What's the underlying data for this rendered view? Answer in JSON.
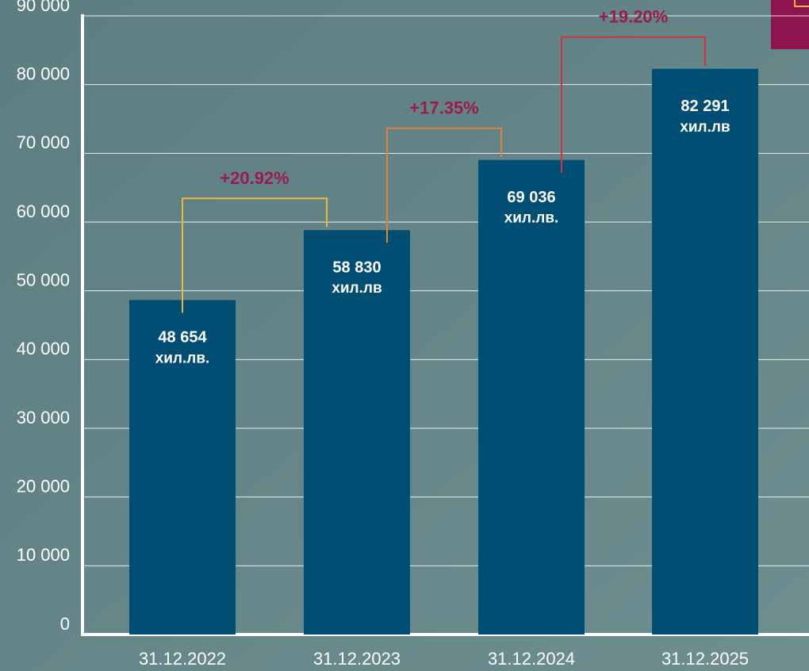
{
  "chart_data": {
    "type": "bar",
    "categories": [
      "31.12.2022",
      "31.12.2023",
      "31.12.2024",
      "31.12.2025"
    ],
    "values": [
      48654,
      58830,
      69036,
      82291
    ],
    "value_labels": [
      "48 654",
      "58 830",
      "69 036",
      "82 291"
    ],
    "value_units": [
      "хил.лв.",
      "хил.лв",
      "хил.лв.",
      "хил.лв"
    ],
    "color": "#004e73",
    "ylim": [
      0,
      90000
    ],
    "yticks": [
      0,
      {
        "value": 10000,
        "label": "10 000"
      },
      {
        "value": 20000,
        "label": "20 000"
      },
      {
        "value": 30000,
        "label": "30 000"
      },
      {
        "value": 40000,
        "label": "40 000"
      },
      {
        "value": 50000,
        "label": "50 000"
      },
      {
        "value": 60000,
        "label": "60 000"
      },
      {
        "value": 70000,
        "label": "70 000"
      },
      {
        "value": 80000,
        "label": "80 000"
      },
      {
        "value": 90000,
        "label": "90 000"
      }
    ],
    "grid": true,
    "annotations": [
      {
        "text": "+20.92%",
        "from": 0,
        "to": 1,
        "color": "#e9b83c"
      },
      {
        "text": "+17.35%",
        "from": 1,
        "to": 2,
        "color": "#e0823a"
      },
      {
        "text": "+19.20%",
        "from": 2,
        "to": 3,
        "color": "#d8323e"
      }
    ]
  }
}
